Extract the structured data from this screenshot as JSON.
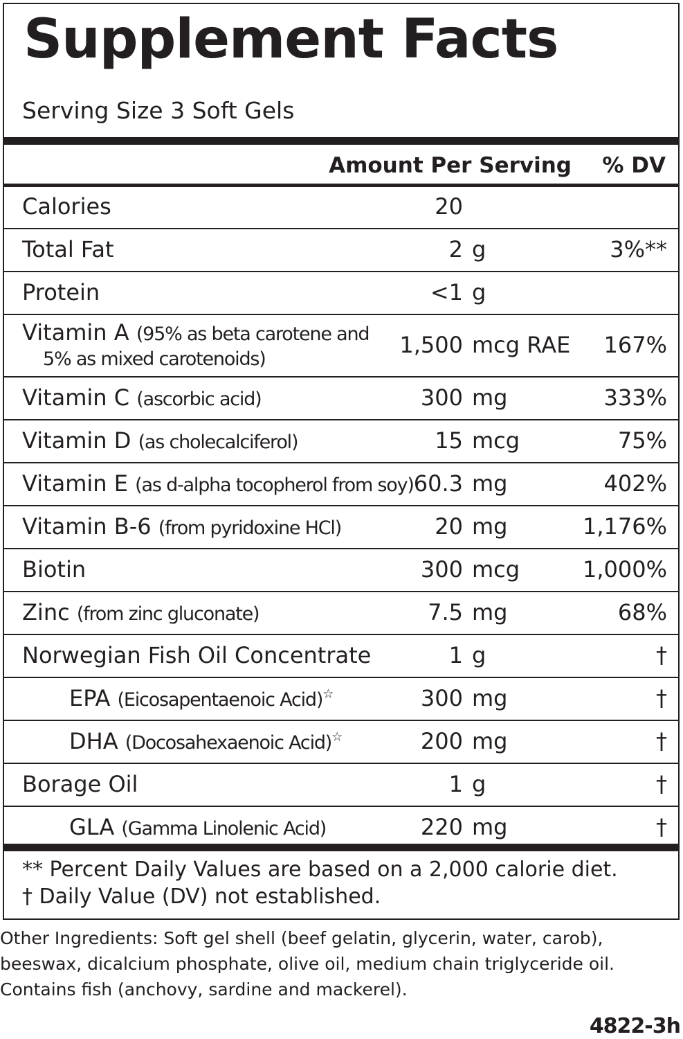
{
  "title": "Supplement Facts",
  "serving_size": "Serving Size 3 Soft Gels",
  "header": {
    "amount": "Amount Per Serving",
    "dv": "% DV"
  },
  "rows": [
    {
      "name": "Calories",
      "qty": "20"
    },
    {
      "name": "Total Fat",
      "qty": "2",
      "unit": "g",
      "dv": "3%**"
    },
    {
      "name": "Protein",
      "qty": "<1",
      "unit": "g"
    },
    {
      "name": "Vitamin A",
      "detail": "(95% as beta carotene and",
      "detail2": "5% as mixed carotenoids)",
      "qty": "1,500",
      "unit": "mcg RAE",
      "dv": "167%"
    },
    {
      "name": "Vitamin C",
      "detail": "(ascorbic acid)",
      "qty": "300",
      "unit": "mg",
      "dv": "333%"
    },
    {
      "name": "Vitamin D",
      "detail": "(as cholecalciferol)",
      "qty": "15",
      "unit": "mcg",
      "dv": "75%"
    },
    {
      "name": "Vitamin E",
      "detail": "(as d-alpha tocopherol from soy)",
      "qty": "60.3",
      "unit": "mg",
      "dv": "402%"
    },
    {
      "name": "Vitamin B-6",
      "detail": "(from pyridoxine HCl)",
      "qty": "20",
      "unit": "mg",
      "dv": "1,176%"
    },
    {
      "name": "Biotin",
      "qty": "300",
      "unit": "mcg",
      "dv": "1,000%"
    },
    {
      "name": "Zinc",
      "detail": "(from zinc gluconate)",
      "qty": "7.5",
      "unit": "mg",
      "dv": "68%"
    },
    {
      "name": "Norwegian Fish Oil Concentrate",
      "qty": "1",
      "unit": "g",
      "dv": "†"
    },
    {
      "name": "EPA",
      "detail": "(Eicosapentaenoic Acid)",
      "note": "☆",
      "sub": true,
      "qty": "300",
      "unit": "mg",
      "dv": "†"
    },
    {
      "name": "DHA",
      "detail": "(Docosahexaenoic Acid)",
      "note": "☆",
      "sub": true,
      "qty": "200",
      "unit": "mg",
      "dv": "†"
    },
    {
      "name": "Borage Oil",
      "qty": "1",
      "unit": "g",
      "dv": "†"
    },
    {
      "name": "GLA",
      "detail": "(Gamma Linolenic Acid)",
      "sub": true,
      "qty": "220",
      "unit": "mg",
      "dv": "†"
    }
  ],
  "footnotes": [
    "** Percent Daily Values are based on a 2,000 calorie diet.",
    "† Daily Value (DV) not established."
  ],
  "other_ingredients": [
    "Other Ingredients: Soft gel shell (beef gelatin, glycerin, water, carob),",
    "beeswax, dicalcium phosphate, olive oil, medium chain triglyceride oil.",
    "Contains fish (anchovy, sardine and mackerel)."
  ],
  "code": "4822-3h"
}
